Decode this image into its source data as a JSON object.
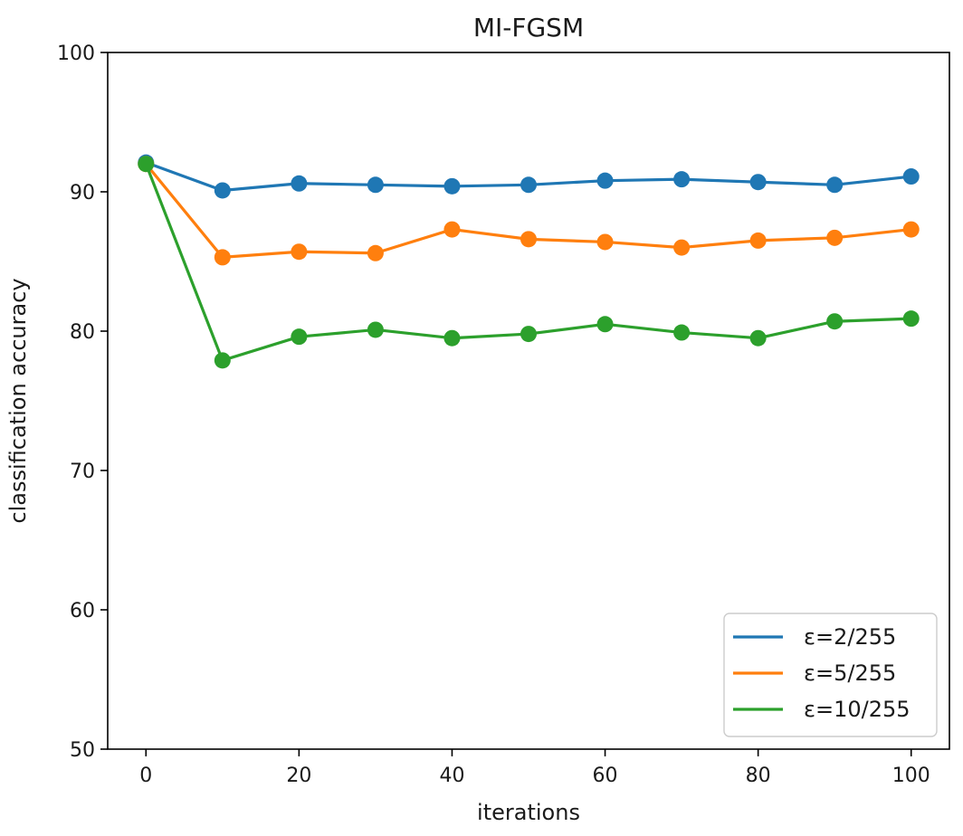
{
  "chart_data": {
    "type": "line",
    "title": "MI-FGSM",
    "xlabel": "iterations",
    "ylabel": "classification accuracy",
    "xlim": [
      -5,
      105
    ],
    "ylim": [
      50,
      100
    ],
    "xticks": [
      0,
      20,
      40,
      60,
      80,
      100
    ],
    "yticks": [
      50,
      60,
      70,
      80,
      90,
      100
    ],
    "x": [
      0,
      10,
      20,
      30,
      40,
      50,
      60,
      70,
      80,
      90,
      100
    ],
    "legend_position": "lower-right",
    "series": [
      {
        "name": "ε=2/255",
        "color": "#1f77b4",
        "values": [
          92.1,
          90.1,
          90.6,
          90.5,
          90.4,
          90.5,
          90.8,
          90.9,
          90.7,
          90.5,
          91.1
        ]
      },
      {
        "name": "ε=5/255",
        "color": "#ff7f0e",
        "values": [
          92.0,
          85.3,
          85.7,
          85.6,
          87.3,
          86.6,
          86.4,
          86.0,
          86.5,
          86.7,
          87.3
        ]
      },
      {
        "name": "ε=10/255",
        "color": "#2ca02c",
        "values": [
          92.0,
          77.9,
          79.6,
          80.1,
          79.5,
          79.8,
          80.5,
          79.9,
          79.5,
          80.7,
          80.9
        ]
      }
    ]
  }
}
